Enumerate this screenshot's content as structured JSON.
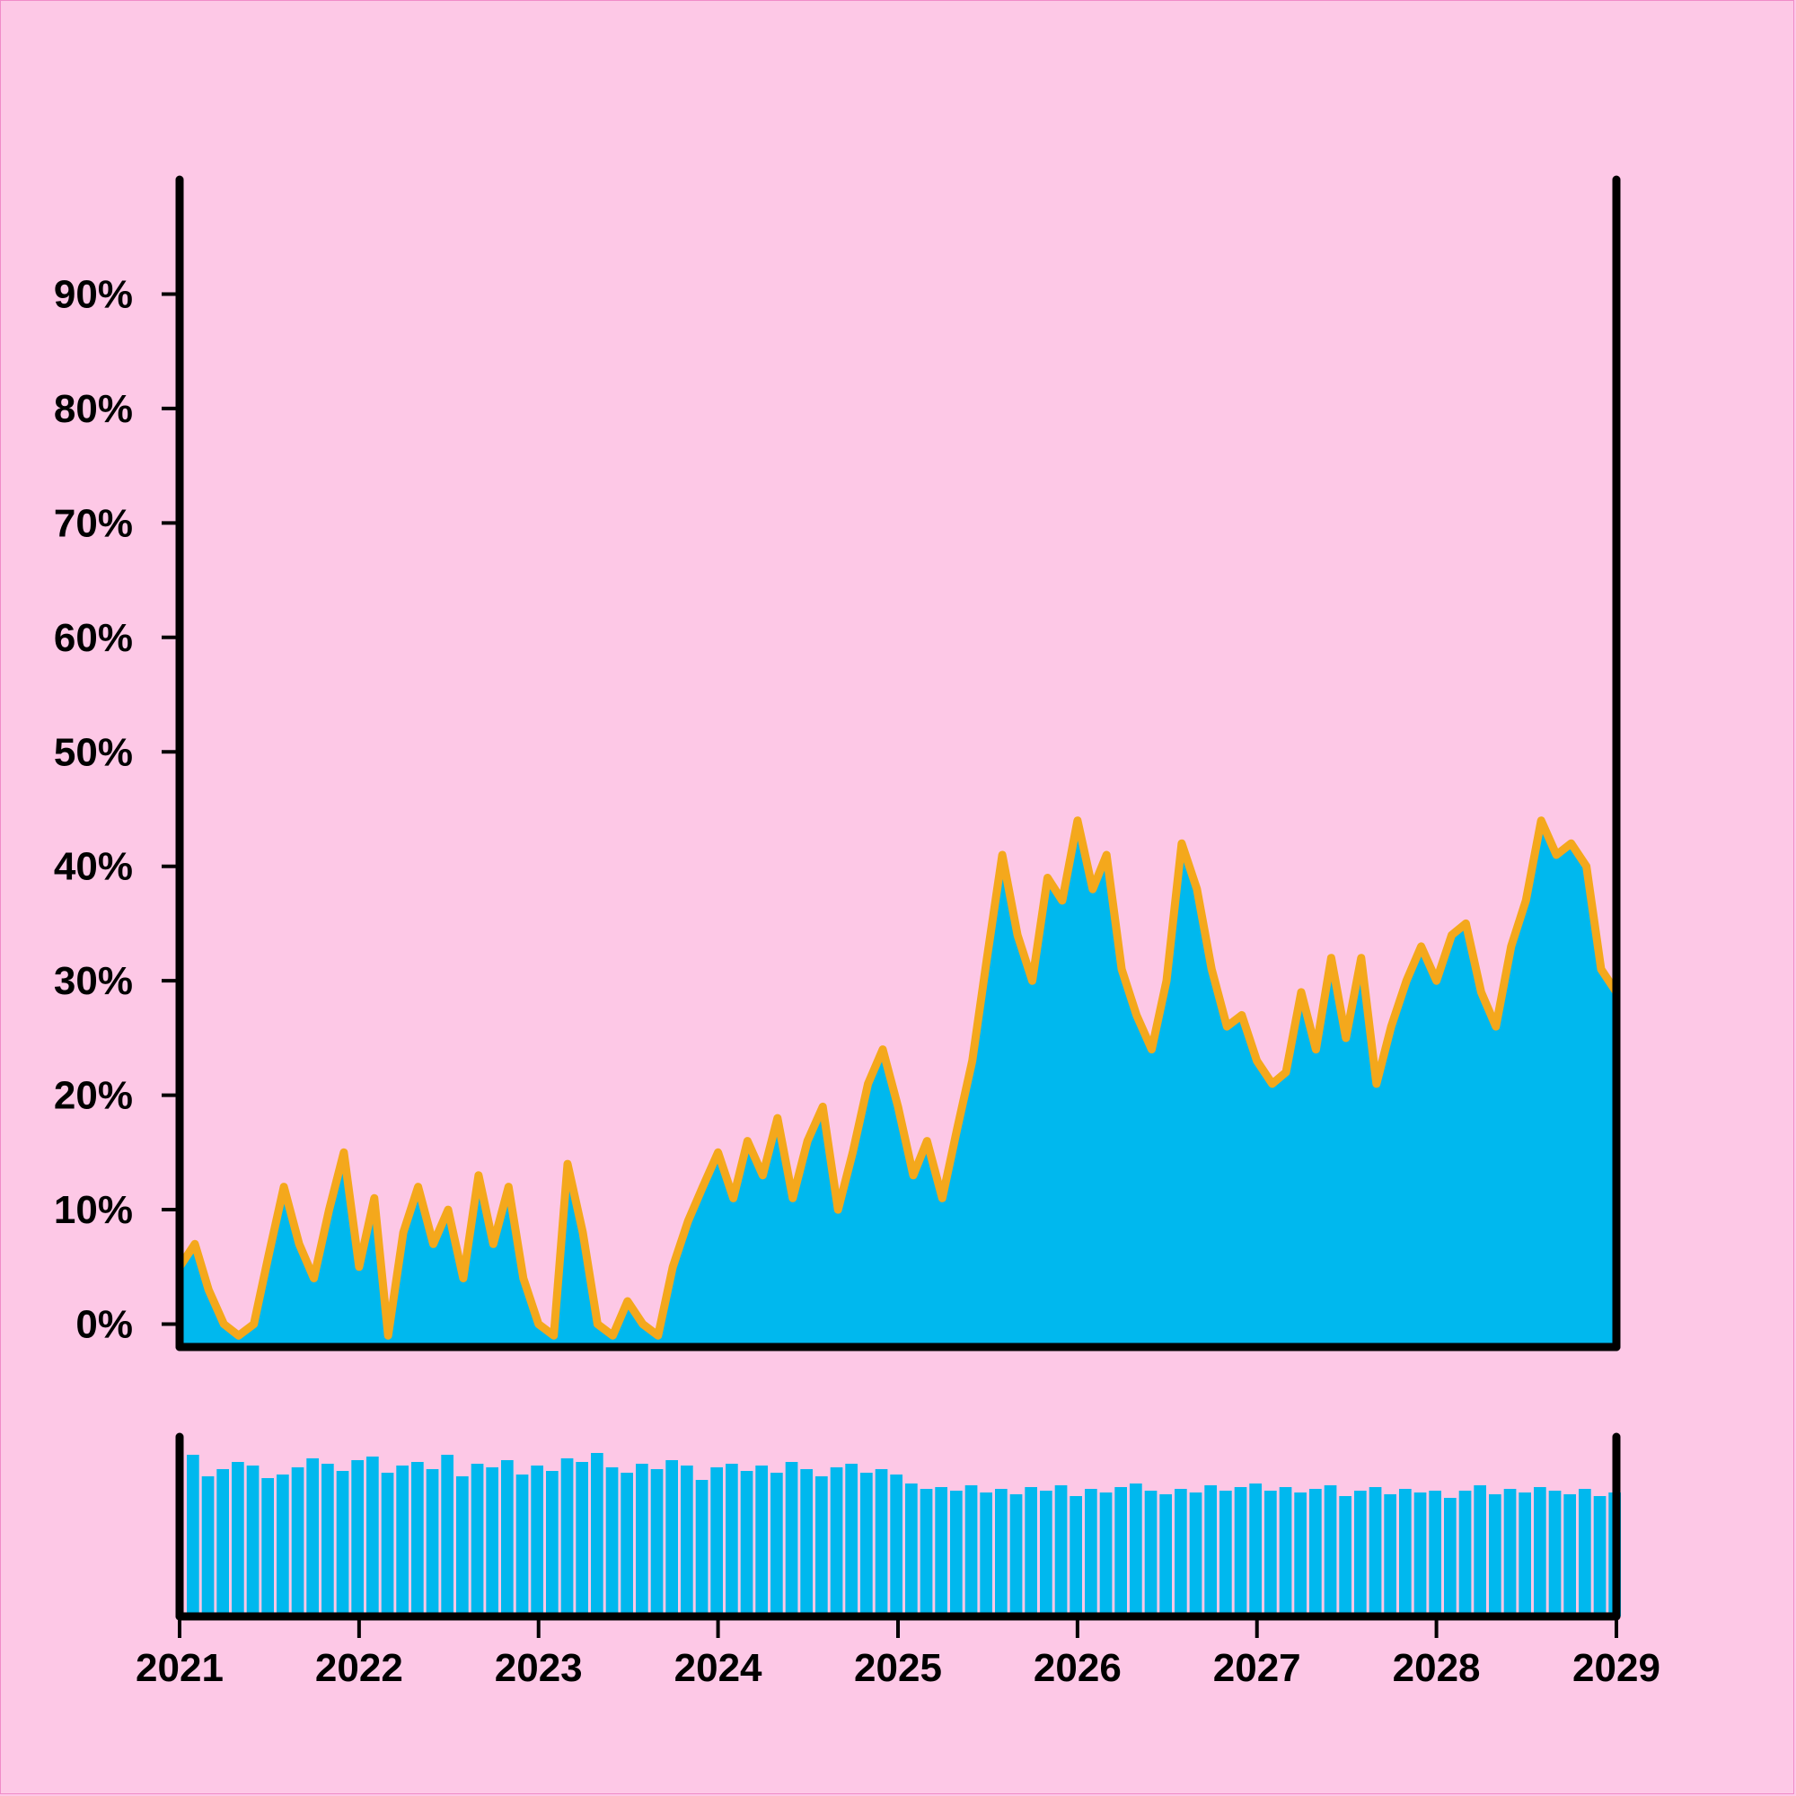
{
  "chart_data": {
    "type": "area",
    "title": "",
    "xlabel": "",
    "ylabel": "",
    "x_ticks": [
      "2021",
      "2022",
      "2023",
      "2024",
      "2025",
      "2026",
      "2027",
      "2028",
      "2029"
    ],
    "y_ticks": [
      "0%",
      "10%",
      "20%",
      "30%",
      "40%",
      "50%",
      "60%",
      "70%",
      "80%",
      "90%"
    ],
    "xlim": [
      "2021-01-01",
      "2029-01-01"
    ],
    "ylim": [
      -2,
      100
    ],
    "grid": false,
    "legend": "none",
    "colors": {
      "background": "#fdc8e6",
      "area_fill": "#00b8ee",
      "band": "#f4a81c",
      "axes": "#000000"
    },
    "series": [
      {
        "points": [
          [
            "2021-01-01",
            5
          ],
          [
            "2021-02-01",
            7
          ],
          [
            "2021-03-01",
            3
          ],
          [
            "2021-04-01",
            0
          ],
          [
            "2021-05-01",
            -1
          ],
          [
            "2021-06-01",
            0
          ],
          [
            "2021-07-01",
            6
          ],
          [
            "2021-08-01",
            12
          ],
          [
            "2021-09-01",
            7
          ],
          [
            "2021-10-01",
            4
          ],
          [
            "2021-11-01",
            10
          ],
          [
            "2021-12-01",
            15
          ],
          [
            "2022-01-01",
            5
          ],
          [
            "2022-02-01",
            11
          ],
          [
            "2022-03-01",
            -1
          ],
          [
            "2022-04-01",
            8
          ],
          [
            "2022-05-01",
            12
          ],
          [
            "2022-06-01",
            7
          ],
          [
            "2022-07-01",
            10
          ],
          [
            "2022-08-01",
            4
          ],
          [
            "2022-09-01",
            13
          ],
          [
            "2022-10-01",
            7
          ],
          [
            "2022-11-01",
            12
          ],
          [
            "2022-12-01",
            4
          ],
          [
            "2023-01-01",
            0
          ],
          [
            "2023-02-01",
            -1
          ],
          [
            "2023-03-01",
            14
          ],
          [
            "2023-04-01",
            8
          ],
          [
            "2023-05-01",
            0
          ],
          [
            "2023-06-01",
            -1
          ],
          [
            "2023-07-01",
            2
          ],
          [
            "2023-08-01",
            0
          ],
          [
            "2023-09-01",
            -1
          ],
          [
            "2023-10-01",
            5
          ],
          [
            "2023-11-01",
            9
          ],
          [
            "2023-12-01",
            12
          ],
          [
            "2024-01-01",
            15
          ],
          [
            "2024-02-01",
            11
          ],
          [
            "2024-03-01",
            16
          ],
          [
            "2024-04-01",
            13
          ],
          [
            "2024-05-01",
            18
          ],
          [
            "2024-06-01",
            11
          ],
          [
            "2024-07-01",
            16
          ],
          [
            "2024-08-01",
            19
          ],
          [
            "2024-09-01",
            10
          ],
          [
            "2024-10-01",
            15
          ],
          [
            "2024-11-01",
            21
          ],
          [
            "2024-12-01",
            24
          ],
          [
            "2025-01-01",
            19
          ],
          [
            "2025-02-01",
            13
          ],
          [
            "2025-03-01",
            16
          ],
          [
            "2025-04-01",
            11
          ],
          [
            "2025-05-01",
            17
          ],
          [
            "2025-06-01",
            23
          ],
          [
            "2025-07-01",
            32
          ],
          [
            "2025-08-01",
            41
          ],
          [
            "2025-09-01",
            34
          ],
          [
            "2025-10-01",
            30
          ],
          [
            "2025-11-01",
            39
          ],
          [
            "2025-12-01",
            37
          ],
          [
            "2026-01-01",
            44
          ],
          [
            "2026-02-01",
            38
          ],
          [
            "2026-03-01",
            41
          ],
          [
            "2026-04-01",
            31
          ],
          [
            "2026-05-01",
            27
          ],
          [
            "2026-06-01",
            24
          ],
          [
            "2026-07-01",
            30
          ],
          [
            "2026-08-01",
            42
          ],
          [
            "2026-09-01",
            38
          ],
          [
            "2026-10-01",
            31
          ],
          [
            "2026-11-01",
            26
          ],
          [
            "2026-12-01",
            27
          ],
          [
            "2027-01-01",
            23
          ],
          [
            "2027-02-01",
            21
          ],
          [
            "2027-03-01",
            22
          ],
          [
            "2027-04-01",
            29
          ],
          [
            "2027-05-01",
            24
          ],
          [
            "2027-06-01",
            32
          ],
          [
            "2027-07-01",
            25
          ],
          [
            "2027-08-01",
            32
          ],
          [
            "2027-09-01",
            21
          ],
          [
            "2027-10-01",
            26
          ],
          [
            "2027-11-01",
            30
          ],
          [
            "2027-12-01",
            33
          ],
          [
            "2028-01-01",
            30
          ],
          [
            "2028-02-01",
            34
          ],
          [
            "2028-03-01",
            35
          ],
          [
            "2028-04-01",
            29
          ],
          [
            "2028-05-01",
            26
          ],
          [
            "2028-06-01",
            33
          ],
          [
            "2028-07-01",
            37
          ],
          [
            "2028-08-01",
            44
          ],
          [
            "2028-09-01",
            41
          ],
          [
            "2028-10-01",
            42
          ],
          [
            "2028-11-01",
            40
          ],
          [
            "2028-12-01",
            31
          ],
          [
            "2029-01-01",
            29
          ]
        ]
      }
    ],
    "volume": {
      "type": "bar",
      "values": [
        90,
        78,
        82,
        86,
        84,
        77,
        79,
        83,
        88,
        85,
        81,
        87,
        89,
        80,
        84,
        86,
        82,
        90,
        78,
        85,
        83,
        87,
        79,
        84,
        81,
        88,
        86,
        91,
        83,
        80,
        85,
        82,
        87,
        84,
        76,
        83,
        85,
        81,
        84,
        80,
        86,
        82,
        78,
        83,
        85,
        80,
        82,
        79,
        74,
        71,
        72,
        70,
        73,
        69,
        71,
        68,
        72,
        70,
        73,
        67,
        71,
        69,
        72,
        74,
        70,
        68,
        71,
        69,
        73,
        70,
        72,
        74,
        70,
        72,
        69,
        71,
        73,
        67,
        70,
        72,
        68,
        71,
        69,
        70,
        66,
        70,
        73,
        68,
        71,
        69,
        72,
        70,
        68,
        71,
        67,
        69
      ]
    }
  }
}
